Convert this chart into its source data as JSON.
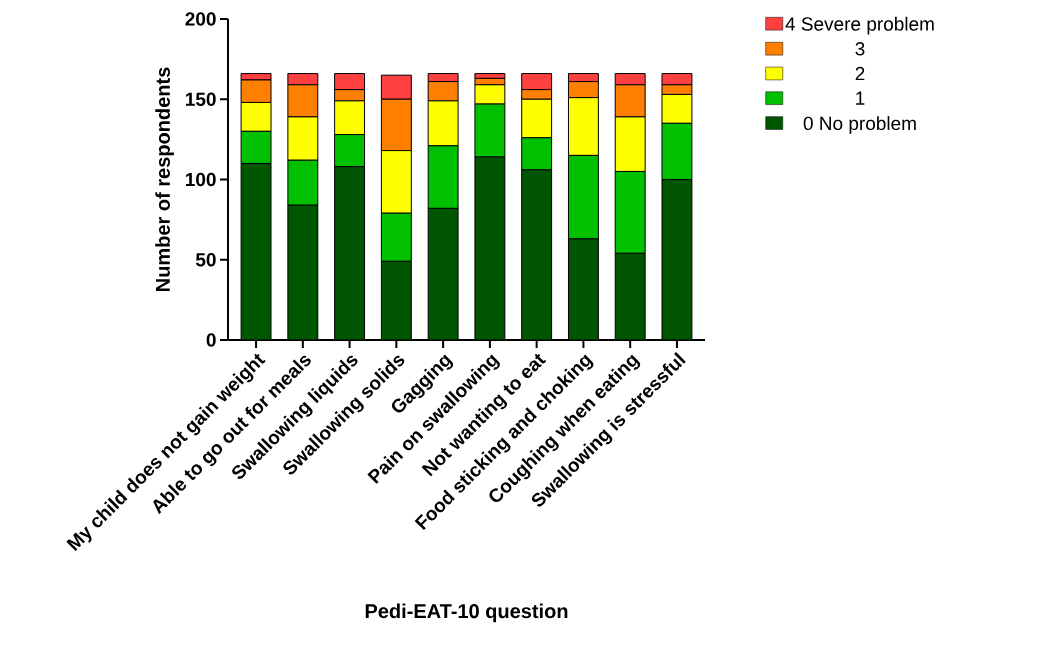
{
  "chart_data": {
    "type": "bar",
    "stacked": true,
    "xlabel": "Pedi-EAT-10 question",
    "ylabel": "Number of respondents",
    "categories": [
      "My child does not gain weight",
      "Able to go out for meals",
      "Swallowing liquids",
      "Swallowing solids",
      "Gagging",
      "Pain on swallowing",
      "Not wanting to eat",
      "Food sticking and choking",
      "Coughing when eating",
      "Swallowing is stressful"
    ],
    "series": [
      {
        "name": "0 No problem",
        "color": "#005500",
        "values": [
          110,
          84,
          108,
          49,
          82,
          114,
          106,
          63,
          54,
          100
        ]
      },
      {
        "name": "1",
        "color": "#00c000",
        "values": [
          20,
          28,
          20,
          30,
          39,
          33,
          20,
          52,
          51,
          35
        ]
      },
      {
        "name": "2",
        "color": "#ffff00",
        "values": [
          18,
          27,
          21,
          39,
          28,
          12,
          24,
          36,
          34,
          18
        ]
      },
      {
        "name": "3",
        "color": "#ff8000",
        "values": [
          14,
          20,
          7,
          32,
          12,
          4,
          6,
          10,
          20,
          6
        ]
      },
      {
        "name": "4 Severe problem",
        "color": "#ff4040",
        "values": [
          4,
          7,
          10,
          15,
          5,
          3,
          10,
          5,
          7,
          7
        ]
      }
    ],
    "ylim": [
      0,
      200
    ],
    "yticks": [
      0,
      50,
      100,
      150,
      200
    ],
    "legend": "top right"
  }
}
